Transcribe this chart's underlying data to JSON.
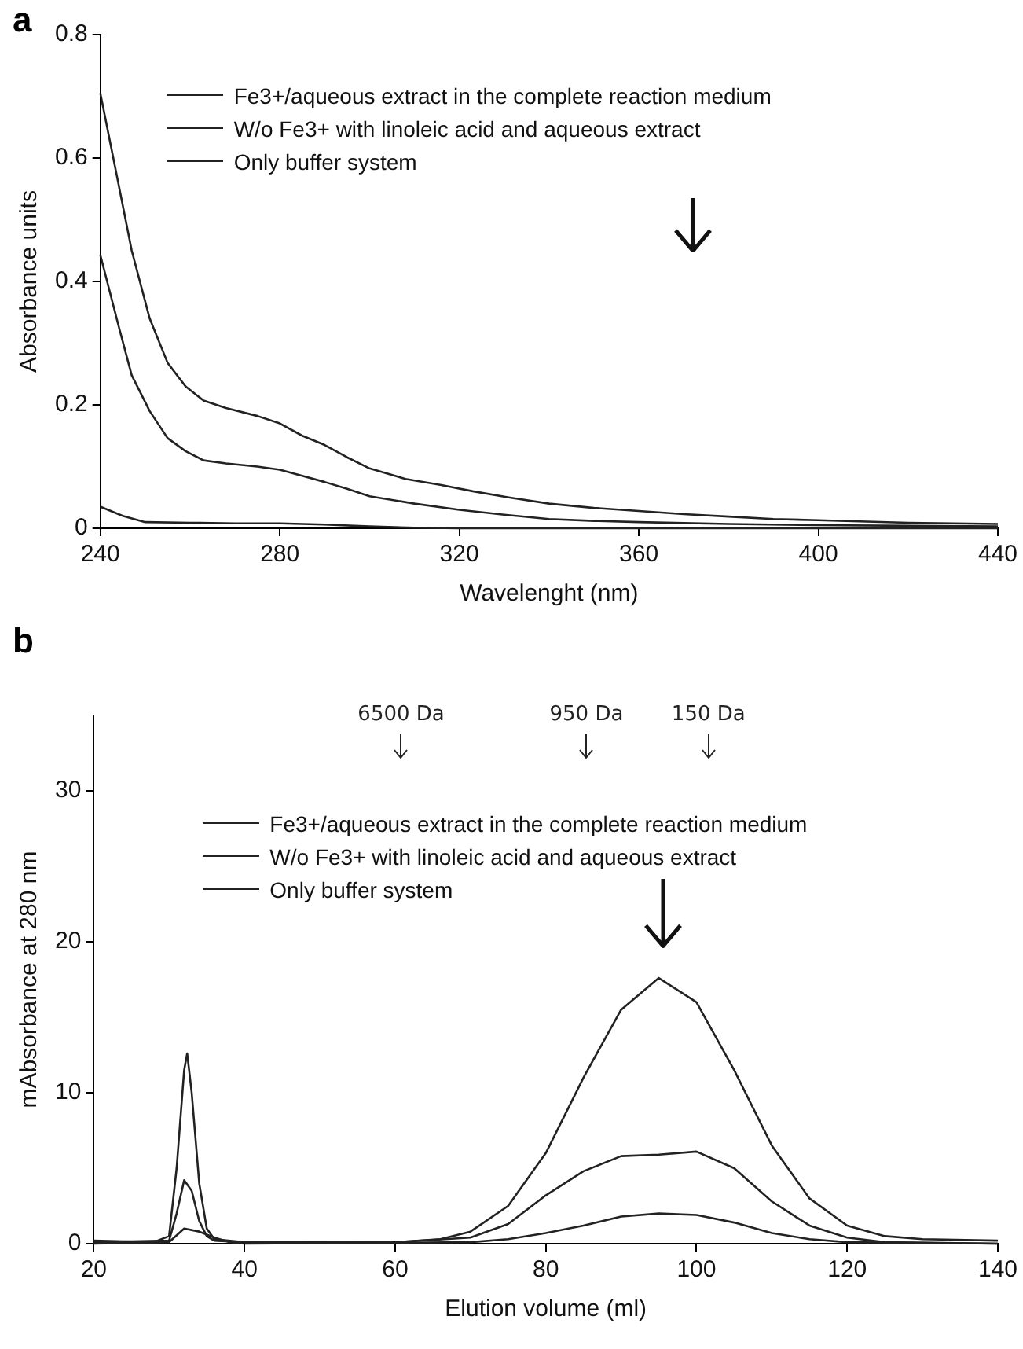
{
  "chart_data": [
    {
      "type": "line",
      "title": "a",
      "xlabel": "Wavelenght (nm)",
      "ylabel": "Absorbance units",
      "xlim": [
        240,
        440
      ],
      "xticks": [
        240,
        280,
        320,
        360,
        400,
        440
      ],
      "ylim": [
        0,
        0.8
      ],
      "yticks": [
        0,
        0.2,
        0.4,
        0.6,
        0.8
      ],
      "grid": false,
      "legend": "top",
      "marker": "none",
      "line_style": "solid",
      "series": [
        {
          "name": "Fe3+/aqueous extract in the complete reaction medium",
          "color": "#222222",
          "x": [
            240,
            244,
            247,
            251,
            255,
            259,
            263,
            268,
            275,
            280,
            285,
            290,
            295,
            300,
            308,
            316,
            323,
            331,
            340,
            350,
            360,
            370,
            380,
            390,
            400,
            420,
            440
          ],
          "values": [
            0.705,
            0.56,
            0.45,
            0.34,
            0.268,
            0.23,
            0.207,
            0.195,
            0.182,
            0.17,
            0.15,
            0.135,
            0.115,
            0.097,
            0.08,
            0.07,
            0.06,
            0.05,
            0.04,
            0.033,
            0.028,
            0.023,
            0.019,
            0.015,
            0.013,
            0.009,
            0.007
          ]
        },
        {
          "name": "W/o Fe3+ with linoleic acid and aqueous extract",
          "color": "#222222",
          "x": [
            240,
            244,
            247,
            251,
            255,
            259,
            263,
            268,
            275,
            280,
            285,
            290,
            295,
            300,
            310,
            320,
            330,
            340,
            350,
            360,
            380,
            400,
            420,
            440
          ],
          "values": [
            0.443,
            0.33,
            0.248,
            0.19,
            0.146,
            0.125,
            0.11,
            0.105,
            0.1,
            0.095,
            0.085,
            0.075,
            0.064,
            0.052,
            0.04,
            0.03,
            0.022,
            0.015,
            0.012,
            0.01,
            0.007,
            0.005,
            0.004,
            0.003
          ]
        },
        {
          "name": "Only buffer system",
          "color": "#222222",
          "x": [
            240,
            245,
            250,
            260,
            270,
            280,
            290,
            300,
            310,
            320,
            340,
            380,
            440
          ],
          "values": [
            0.035,
            0.02,
            0.01,
            0.009,
            0.008,
            0.008,
            0.006,
            0.003,
            0.001,
            0,
            0,
            0,
            0
          ]
        }
      ]
    },
    {
      "type": "line",
      "title": "b",
      "xlabel": "Elution volume (ml)",
      "ylabel": "mAbsorbance at 280 nm",
      "xlim": [
        20,
        140
      ],
      "xticks": [
        20,
        40,
        60,
        80,
        100,
        120,
        140
      ],
      "ylim": [
        0,
        35
      ],
      "yticks": [
        0,
        10,
        20,
        30
      ],
      "grid": false,
      "legend": "top",
      "marker": "none",
      "line_style": "solid",
      "annotations": [
        "6500 Da",
        "950 Da",
        "150 Da"
      ],
      "series": [
        {
          "name": "Fe3+/aqueous extract in the complete reaction medium",
          "color": "#222222",
          "x": [
            20,
            28,
            30,
            31,
            32,
            32.4,
            33,
            34,
            35,
            36,
            40,
            60,
            66,
            70,
            75,
            80,
            85,
            90,
            95,
            100,
            105,
            110,
            115,
            120,
            125,
            130,
            140
          ],
          "values": [
            0.2,
            0.1,
            0.5,
            5,
            11.5,
            12.6,
            10,
            4,
            1,
            0.3,
            0.1,
            0.1,
            0.3,
            0.8,
            2.5,
            6,
            11,
            15.5,
            17.6,
            16,
            11.5,
            6.5,
            3,
            1.2,
            0.5,
            0.3,
            0.2
          ]
        },
        {
          "name": "W/o Fe3+ with linoleic acid and aqueous extract",
          "color": "#222222",
          "x": [
            20,
            30,
            31,
            32,
            33,
            34,
            35,
            36,
            40,
            60,
            70,
            75,
            80,
            85,
            90,
            95,
            100,
            105,
            110,
            115,
            120,
            125,
            140
          ],
          "values": [
            0.1,
            0.2,
            2,
            4.2,
            3.5,
            1.5,
            0.5,
            0.2,
            0.1,
            0.1,
            0.4,
            1.3,
            3.2,
            4.8,
            5.8,
            5.9,
            6.1,
            5,
            2.8,
            1.2,
            0.4,
            0.1,
            0
          ]
        },
        {
          "name": "Only buffer system",
          "color": "#222222",
          "x": [
            20,
            30,
            32,
            34,
            36,
            38,
            40,
            70,
            75,
            80,
            85,
            90,
            95,
            100,
            105,
            110,
            115,
            120,
            140
          ],
          "values": [
            0,
            0.1,
            1,
            0.8,
            0.4,
            0.1,
            0,
            0.1,
            0.3,
            0.7,
            1.2,
            1.8,
            2,
            1.9,
            1.4,
            0.7,
            0.3,
            0.1,
            0
          ]
        }
      ]
    }
  ]
}
